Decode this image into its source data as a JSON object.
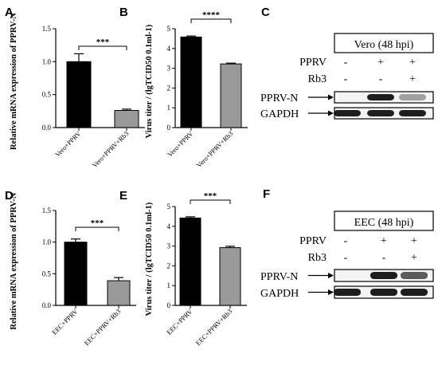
{
  "panels": {
    "A": "A",
    "B": "B",
    "C": "C",
    "D": "D",
    "E": "E",
    "F": "F"
  },
  "chart_data": [
    {
      "panel": "A",
      "type": "bar",
      "categories": [
        "Vero+PPRV",
        "Vero+PPRV+Rb3"
      ],
      "values": [
        1.0,
        0.26
      ],
      "errors": [
        0.12,
        0.02
      ],
      "colors": [
        "#000000",
        "#999999"
      ],
      "ylabel": "Relative mRNA expression of PPRV-N",
      "ylim": [
        0,
        1.5
      ],
      "yticks": [
        "0.0",
        "0.5",
        "1.0",
        "1.5"
      ],
      "significance": "***"
    },
    {
      "panel": "B",
      "type": "bar",
      "categories": [
        "Vero+PPRV",
        "Vero+PPRV+Rb3"
      ],
      "values": [
        4.58,
        3.22
      ],
      "errors": [
        0.05,
        0.04
      ],
      "colors": [
        "#000000",
        "#999999"
      ],
      "ylabel": "Virus titer / (lgTCID50 0.1ml-1)",
      "ylim": [
        0,
        5
      ],
      "yticks": [
        "0",
        "1",
        "2",
        "3",
        "4",
        "5"
      ],
      "significance": "****"
    },
    {
      "panel": "D",
      "type": "bar",
      "categories": [
        "EEC+PPRV",
        "EEC+PPRV+Rb3"
      ],
      "values": [
        1.0,
        0.39
      ],
      "errors": [
        0.05,
        0.05
      ],
      "colors": [
        "#000000",
        "#999999"
      ],
      "ylabel": "Relative mRNA expression of PPRV-N",
      "ylim": [
        0,
        1.5
      ],
      "yticks": [
        "0.0",
        "0.5",
        "1.0",
        "1.5"
      ],
      "significance": "***"
    },
    {
      "panel": "E",
      "type": "bar",
      "categories": [
        "EEC+PPRV",
        "EEC+PPRV+Rb3"
      ],
      "values": [
        4.42,
        2.92
      ],
      "errors": [
        0.06,
        0.07
      ],
      "colors": [
        "#000000",
        "#999999"
      ],
      "ylabel": "Virus titer / (lgTCID50 0.1ml-1)",
      "ylim": [
        0,
        5
      ],
      "yticks": [
        "0",
        "1",
        "2",
        "3",
        "4",
        "5"
      ],
      "significance": "***"
    }
  ],
  "blots": [
    {
      "panel": "C",
      "title": "Vero (48 hpi)",
      "rows": [
        {
          "label": "PPRV",
          "marks": [
            "-",
            "+",
            "+"
          ]
        },
        {
          "label": "Rb3",
          "marks": [
            "-",
            "-",
            "+"
          ]
        }
      ],
      "bands": [
        {
          "label": "PPRV-N",
          "intensity": [
            0.0,
            1.0,
            0.35
          ]
        },
        {
          "label": "GAPDH",
          "intensity": [
            1.0,
            1.0,
            1.0
          ]
        }
      ]
    },
    {
      "panel": "F",
      "title": "EEC (48 hpi)",
      "rows": [
        {
          "label": "PPRV",
          "marks": [
            "-",
            "+",
            "+"
          ]
        },
        {
          "label": "Rb3",
          "marks": [
            "-",
            "-",
            "+"
          ]
        }
      ],
      "bands": [
        {
          "label": "PPRV-N",
          "intensity": [
            0.0,
            1.0,
            0.7
          ]
        },
        {
          "label": "GAPDH",
          "intensity": [
            1.0,
            1.0,
            1.0
          ]
        }
      ]
    }
  ]
}
